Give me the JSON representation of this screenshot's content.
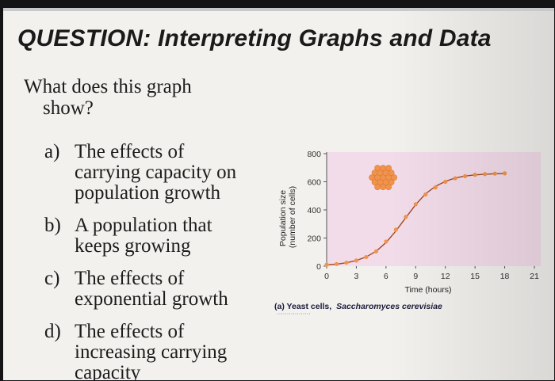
{
  "slide": {
    "title": "QUESTION: Interpreting Graphs and Data",
    "question": {
      "line1": "What does this graph",
      "line2": "show?"
    },
    "options": [
      {
        "letter": "a)",
        "lines": [
          "The effects of",
          "carrying capacity on",
          "population growth"
        ]
      },
      {
        "letter": "b)",
        "lines": [
          "A population that",
          "keeps growing"
        ]
      },
      {
        "letter": "c)",
        "lines": [
          "The effects of",
          "exponential growth"
        ]
      },
      {
        "letter": "d)",
        "lines": [
          "The effects of",
          "increasing carrying",
          "capacity"
        ]
      }
    ]
  },
  "chart_data": {
    "type": "line",
    "ylabel_line1": "Population size",
    "ylabel_line2": "(number of cells)",
    "xlabel": "Time (hours)",
    "caption_prefix": "(a) Yeast cells,",
    "caption_species": "Saccharomyces cerevisiae",
    "xlim": [
      0,
      21
    ],
    "ylim": [
      0,
      800
    ],
    "x_ticks": [
      0,
      3,
      6,
      9,
      12,
      15,
      18,
      21
    ],
    "y_ticks": [
      0,
      200,
      400,
      600,
      800
    ],
    "grid": false,
    "series": [
      {
        "type": "scatter",
        "x": [
          0,
          1,
          2,
          3,
          4,
          5,
          6,
          7,
          8,
          9,
          10,
          11,
          12,
          13,
          14,
          15,
          16,
          17,
          18
        ],
        "y": [
          10,
          15,
          25,
          40,
          65,
          105,
          175,
          260,
          350,
          440,
          510,
          560,
          600,
          625,
          640,
          650,
          655,
          658,
          660
        ]
      },
      {
        "type": "line",
        "x": [
          0,
          1,
          2,
          3,
          4,
          5,
          6,
          7,
          8,
          9,
          10,
          11,
          12,
          13,
          14,
          15,
          16,
          17,
          18
        ],
        "y": [
          9,
          14,
          24,
          40,
          66,
          106,
          168,
          250,
          345,
          438,
          515,
          568,
          603,
          627,
          641,
          649,
          654,
          657,
          659
        ]
      }
    ],
    "colors": {
      "plot_bg": "#f3dcea",
      "point": "#f0944d",
      "curve": "#a04a23",
      "axis": "#555555",
      "caption": "#1b1b3a"
    }
  }
}
